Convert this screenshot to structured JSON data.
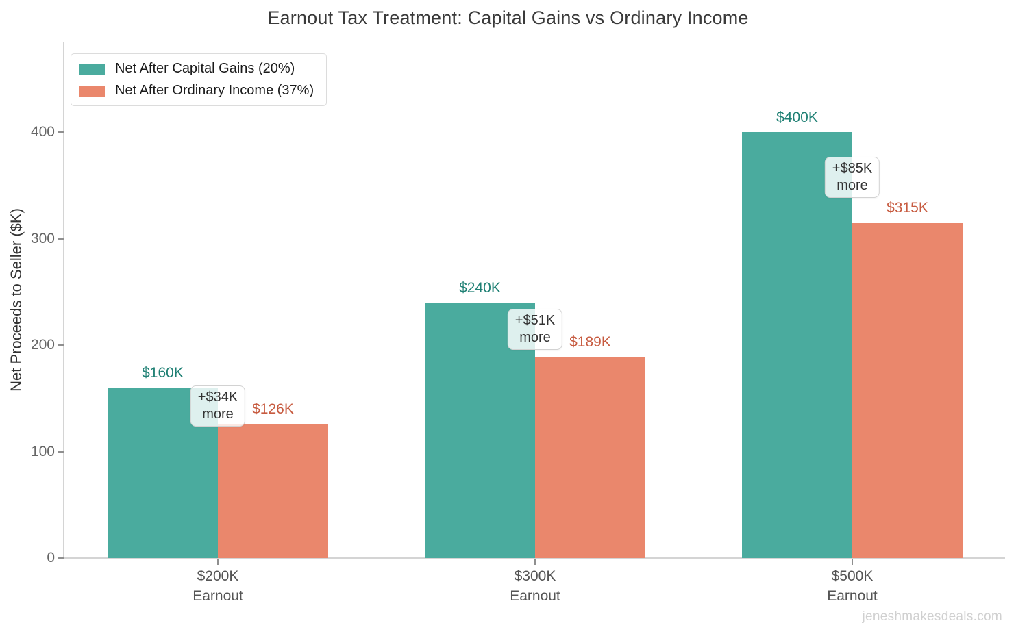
{
  "title": "Earnout Tax Treatment: Capital Gains vs Ordinary Income",
  "watermark": "jeneshmakesdeals.com",
  "colors": {
    "capital_gains_fill": "#4aab9e",
    "ordinary_income_fill": "#ea876c",
    "capital_gains_label": "#1f8074",
    "ordinary_income_label": "#c75b40",
    "axis_line": "#d4d4d4",
    "tick_text": "#666666",
    "title_text": "#3a3a3a"
  },
  "legend": {
    "items": [
      {
        "label": "Net After Capital Gains (20%)",
        "color": "#4aab9e"
      },
      {
        "label": "Net After Ordinary Income (37%)",
        "color": "#ea876c"
      }
    ]
  },
  "chart_data": {
    "type": "bar",
    "title": "Earnout Tax Treatment: Capital Gains vs Ordinary Income",
    "xlabel": "",
    "ylabel": "Net Proceeds to Seller ($K)",
    "ylim": [
      0,
      484
    ],
    "yticks": [
      0,
      100,
      200,
      300,
      400
    ],
    "grid": false,
    "legend_position": "top-left",
    "categories": [
      {
        "line1": "$200K",
        "line2": "Earnout"
      },
      {
        "line1": "$300K",
        "line2": "Earnout"
      },
      {
        "line1": "$500K",
        "line2": "Earnout"
      }
    ],
    "series": [
      {
        "name": "Net After Capital Gains (20%)",
        "color": "#4aab9e",
        "label_color": "#1f8074",
        "values": [
          160,
          240,
          400
        ],
        "labels": [
          "$160K",
          "$240K",
          "$400K"
        ]
      },
      {
        "name": "Net After Ordinary Income (37%)",
        "color": "#ea876c",
        "label_color": "#c75b40",
        "values": [
          126,
          189,
          315
        ],
        "labels": [
          "$126K",
          "$189K",
          "$315K"
        ]
      }
    ],
    "annotations": [
      {
        "line1": "+$34K",
        "line2": "more"
      },
      {
        "line1": "+$51K",
        "line2": "more"
      },
      {
        "line1": "+$85K",
        "line2": "more"
      }
    ]
  }
}
